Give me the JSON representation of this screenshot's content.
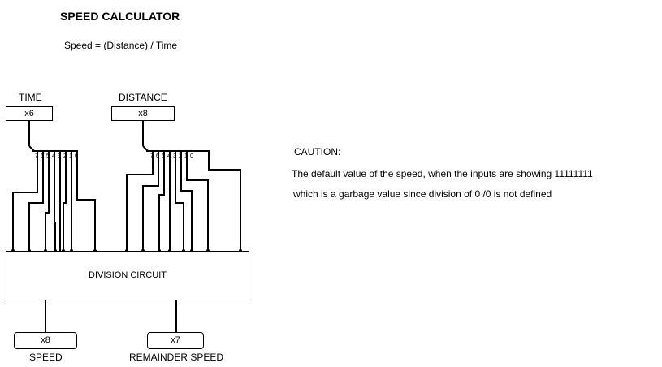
{
  "title": "SPEED CALCULATOR",
  "formula": "Speed = (Distance) / Time",
  "inputs": {
    "time": {
      "label": "TIME",
      "value": "x6"
    },
    "distance": {
      "label": "DISTANCE",
      "value": "x8"
    }
  },
  "caution": {
    "heading": "CAUTION:",
    "line1": "The default value of the speed, when the inputs are showing 11111111",
    "line2": "which is a garbage value since division of 0 /0 is not defined"
  },
  "circuit": {
    "label": "DIVISION CIRCUIT"
  },
  "outputs": {
    "speed": {
      "label": "SPEED",
      "value": "x8"
    },
    "remainder": {
      "label": "REMAINDER SPEED",
      "value": "x7"
    }
  }
}
